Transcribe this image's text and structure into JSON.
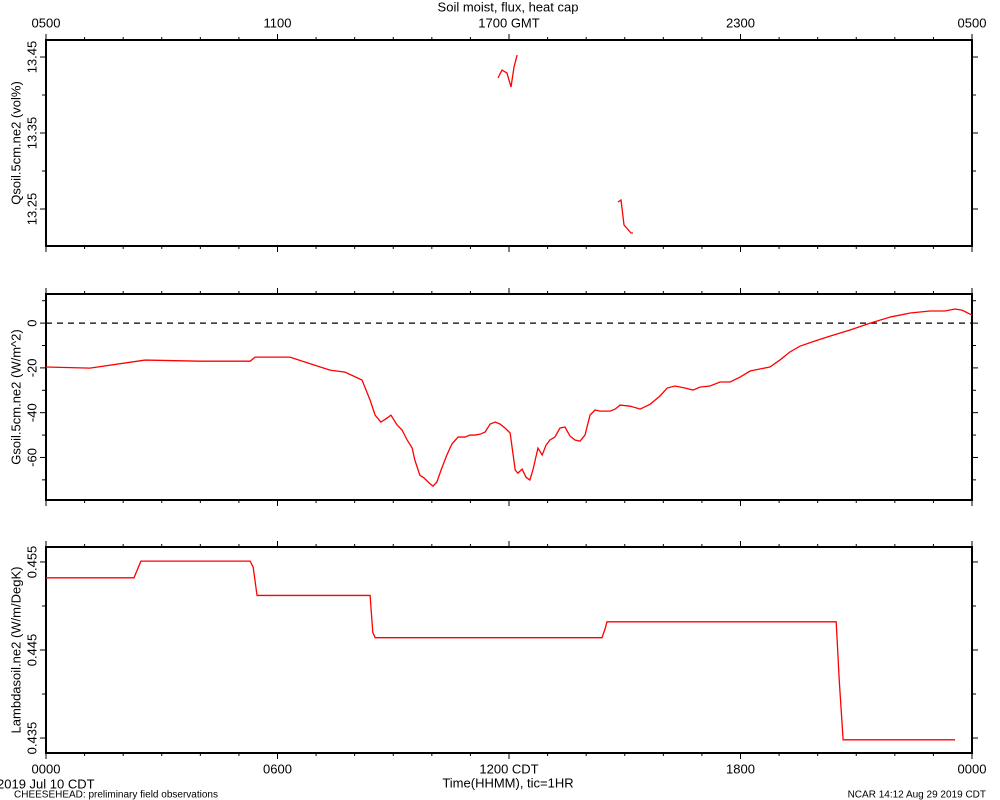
{
  "title": "Soil moist, flux, heat cap",
  "x_axis": {
    "xlim": [
      0,
      24
    ],
    "xticks": [
      {
        "value": 0,
        "label": "0000"
      },
      {
        "value": 6,
        "label": "0600"
      },
      {
        "value": 12,
        "label": "1200 CDT"
      },
      {
        "value": 18,
        "label": "1800"
      },
      {
        "value": 24,
        "label": "0000"
      }
    ],
    "x2ticks": [
      {
        "value": 0,
        "label": "0500"
      },
      {
        "value": 6,
        "label": "1100"
      },
      {
        "value": 12,
        "label": "1700 GMT"
      },
      {
        "value": 18,
        "label": "2300"
      },
      {
        "value": 24,
        "label": "0500"
      }
    ],
    "xminorticks": [
      1,
      2,
      3,
      4,
      5,
      7,
      8,
      9,
      10,
      11,
      13,
      14,
      15,
      16,
      17,
      19,
      20,
      21,
      22,
      23
    ],
    "xlabel": "Time(HHMM), tic=1HR",
    "date_label": "2019 Jul 10 CDT"
  },
  "footer_left": "CHEESEHEAD: preliminary field observations",
  "footer_right": "NCAR 14:12 Aug 29 2019 CDT",
  "chart_data": [
    {
      "type": "line",
      "ylabel": "Qsoil.5cm.ne2 (vol%)",
      "color": "#ff0000",
      "ylim": [
        13.2013,
        13.4724
      ],
      "yticks": [
        13.25,
        13.35,
        13.45
      ],
      "yminorticks": [
        13.3,
        13.4
      ],
      "x": [
        11.715,
        11.818,
        11.948,
        12.052,
        12.13,
        12.21,
        13.5,
        14.825,
        14.903,
        14.981,
        15.162,
        15.214
      ],
      "values": [
        13.4224,
        13.4329,
        13.4289,
        13.4105,
        13.4368,
        13.4526,
        null,
        13.2592,
        13.2618,
        13.2289,
        13.2184,
        13.2184
      ]
    },
    {
      "type": "line",
      "ylabel": "Gsoil.5cm.ne2 (W/m^2)",
      "color": "#ff0000",
      "hline": 0,
      "ylim": [
        -79,
        13
      ],
      "yticks": [
        0,
        -20,
        -40,
        -60
      ],
      "yminorticks": [
        10,
        -10,
        -30,
        -50,
        -70
      ],
      "x": [
        0,
        1.14,
        2.57,
        3.99,
        5.29,
        5.42,
        6.32,
        7.36,
        7.75,
        8.19,
        8.4,
        8.53,
        8.68,
        8.84,
        8.94,
        9.1,
        9.23,
        9.36,
        9.49,
        9.56,
        9.69,
        9.8,
        9.93,
        10.03,
        10.13,
        10.24,
        10.39,
        10.52,
        10.68,
        10.86,
        10.99,
        11.12,
        11.25,
        11.38,
        11.51,
        11.64,
        11.77,
        11.9,
        12.03,
        12.16,
        12.23,
        12.34,
        12.44,
        12.54,
        12.62,
        12.75,
        12.86,
        12.96,
        13.06,
        13.19,
        13.32,
        13.45,
        13.58,
        13.71,
        13.84,
        13.97,
        14.1,
        14.23,
        14.36,
        14.62,
        14.75,
        14.88,
        15.14,
        15.4,
        15.66,
        15.91,
        16.1,
        16.3,
        16.56,
        16.77,
        16.95,
        17.21,
        17.47,
        17.73,
        17.99,
        18.25,
        18.5,
        18.76,
        19.02,
        19.28,
        19.54,
        19.93,
        20.32,
        20.84,
        21.36,
        21.88,
        22.4,
        22.91,
        23.3,
        23.56,
        23.74,
        24
      ],
      "values": [
        -19.6,
        -20.1,
        -16.5,
        -17.0,
        -17.0,
        -15.2,
        -15.2,
        -21.0,
        -21.9,
        -25.4,
        -34.4,
        -41.1,
        -44.2,
        -42.4,
        -41.1,
        -45.5,
        -47.8,
        -52.2,
        -55.8,
        -61.2,
        -67.9,
        -69.2,
        -71.4,
        -72.8,
        -71.0,
        -65.6,
        -58.9,
        -54.0,
        -50.9,
        -50.9,
        -50.0,
        -50.0,
        -49.6,
        -48.7,
        -45.1,
        -44.2,
        -45.1,
        -46.9,
        -49.1,
        -65.6,
        -67.0,
        -65.2,
        -68.8,
        -70.1,
        -65.6,
        -55.8,
        -58.9,
        -54.5,
        -52.2,
        -50.9,
        -46.9,
        -46.4,
        -50.4,
        -52.2,
        -52.7,
        -50.0,
        -41.1,
        -38.8,
        -39.3,
        -39.3,
        -38.4,
        -36.6,
        -37.1,
        -38.4,
        -36.2,
        -32.6,
        -29.0,
        -28.1,
        -29.0,
        -29.9,
        -28.6,
        -28.1,
        -26.3,
        -26.3,
        -24.1,
        -21.4,
        -20.5,
        -19.6,
        -16.5,
        -12.9,
        -10.3,
        -8.0,
        -5.8,
        -3.1,
        0,
        2.7,
        4.5,
        5.4,
        5.4,
        6.3,
        5.8,
        3.6
      ]
    },
    {
      "type": "line",
      "ylabel": "Lambdasoil.ne2 (W/m/DegK)",
      "color": "#ff0000",
      "ylim": [
        0.4333,
        0.4567
      ],
      "yticks": [
        0.435,
        0.445,
        0.455
      ],
      "yminorticks": [
        0.44,
        0.45
      ],
      "x": [
        0,
        2.28,
        2.46,
        5.29,
        5.37,
        5.47,
        8.4,
        8.47,
        8.53,
        14.41,
        14.49,
        14.54,
        20.48,
        20.56,
        20.66,
        23.56
      ],
      "values": [
        0.4532,
        0.4532,
        0.4551,
        0.4551,
        0.4544,
        0.4512,
        0.4512,
        0.447,
        0.4464,
        0.4464,
        0.4474,
        0.4482,
        0.4482,
        0.4415,
        0.4348,
        0.4348
      ]
    }
  ]
}
